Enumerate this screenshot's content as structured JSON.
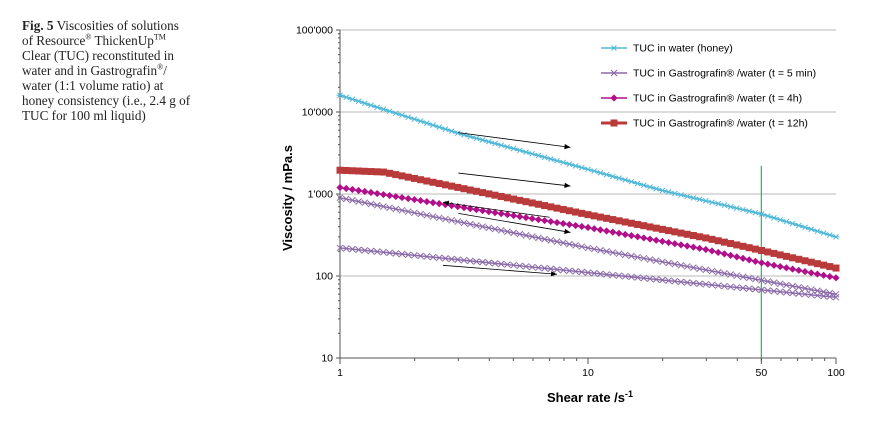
{
  "caption": {
    "label": "Fig. 5",
    "l1a": "Viscosities of solutions",
    "l2a": "of Resource",
    "reg": "®",
    "l2b": " ThickenUp",
    "tm": "TM",
    "l3": "Clear (TUC) reconstituted in",
    "l4a": "water and in Gastrografin",
    "l4reg": "®",
    "l4b": "/",
    "l5": "water (1:1 volume ratio) at",
    "l6": "honey consistency (i.e., 2.4 g of",
    "l7": "TUC for 100 ml liquid)"
  },
  "chart_data": {
    "type": "line",
    "xscale": "log",
    "yscale": "log",
    "xlabel": "Shear rate /s",
    "xlabel_sup": "-1",
    "ylabel": "Viscosity / mPa.s",
    "xlim": [
      1,
      100
    ],
    "ylim": [
      10,
      100000
    ],
    "x_ticks": [
      1,
      10,
      50,
      100
    ],
    "x_tick_labels": [
      "1",
      "10",
      "50",
      "100"
    ],
    "y_ticks": [
      10,
      100,
      1000,
      10000,
      100000
    ],
    "y_tick_labels": [
      "10",
      "100",
      "1'000",
      "10'000",
      "100'000"
    ],
    "grid": "horizontal",
    "legend_position": "top-right",
    "reference_line": {
      "x": 50,
      "color": "#22bb55"
    },
    "series": [
      {
        "name": "TUC in water (honey)",
        "color": "#4fb8d8",
        "marker": "star",
        "x": [
          1,
          3,
          10,
          20,
          50,
          100
        ],
        "y": [
          16000,
          5500,
          2000,
          1100,
          570,
          300
        ]
      },
      {
        "name": "TUC in Gastrografin® /water (t = 5 min)",
        "color": "#8a6aa8",
        "marker": "x",
        "x": [
          1,
          10,
          100
        ],
        "y": [
          220,
          110,
          55
        ]
      },
      {
        "name": "TUC in Gastrografin® /water (t = 4h)",
        "color": "#b0108a",
        "marker": "diamond",
        "x": [
          1,
          3,
          10,
          30,
          50,
          100
        ],
        "y": [
          1200,
          700,
          390,
          210,
          145,
          95
        ]
      },
      {
        "name": "TUC in Gastrografin® /water (t = 12h)",
        "color": "#b83a3a",
        "marker": "square",
        "x": [
          1,
          1.5,
          3,
          10,
          30,
          50,
          100
        ],
        "y": [
          1950,
          1850,
          1200,
          560,
          290,
          205,
          125
        ]
      },
      {
        "name": "",
        "color": "#8a6aa8",
        "marker": "x",
        "x": [
          1,
          10,
          100
        ],
        "y": [
          900,
          220,
          60
        ]
      }
    ],
    "annotations": [
      {
        "type": "arrow",
        "from": [
          3,
          5600
        ],
        "to": [
          8.5,
          3700
        ]
      },
      {
        "type": "arrow",
        "from": [
          3,
          1800
        ],
        "to": [
          8.5,
          1250
        ]
      },
      {
        "type": "arrow",
        "from": [
          3,
          580
        ],
        "to": [
          8.5,
          340
        ]
      },
      {
        "type": "arrow",
        "from": [
          7,
          520
        ],
        "to": [
          2.6,
          790
        ]
      },
      {
        "type": "arrow",
        "from": [
          2.6,
          135
        ],
        "to": [
          7.5,
          105
        ]
      }
    ]
  }
}
